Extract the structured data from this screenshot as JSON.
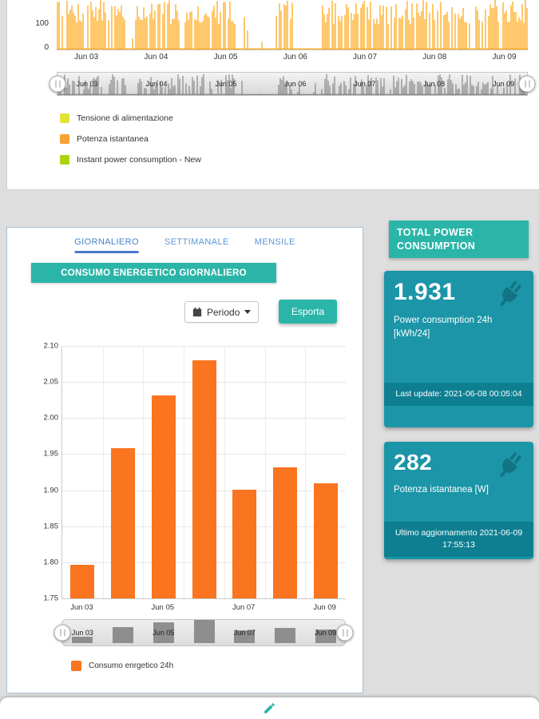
{
  "colors": {
    "accent_teal": "#2bb5a9",
    "card_teal": "#1b95a7",
    "strip_teal": "#0d7f91",
    "bar_orange": "#fb7420",
    "spike_orange": "#ffab1e",
    "navigator_series_gray": "#6f6f6f"
  },
  "top_chart": {
    "y_axis_ticks": [
      "100",
      "0"
    ],
    "x_axis_ticks": [
      "Jun 03",
      "Jun 04",
      "Jun 05",
      "Jun 06",
      "Jun 07",
      "Jun 08",
      "Jun 09"
    ],
    "navigator_labels": [
      "Jun 03",
      "Jun 04",
      "Jun 05",
      "Jun 06",
      "Jun 07",
      "Jun 08",
      "Jun 09"
    ],
    "legend": [
      {
        "label": "Tensione di alimentazione",
        "color": "#e3e337"
      },
      {
        "label": "Potenza istantanea",
        "color": "#f7a232"
      },
      {
        "label": "Instant power consumption - New",
        "color": "#abd40e"
      }
    ]
  },
  "daily_panel": {
    "tabs": [
      {
        "label": "GIORNALIERO"
      },
      {
        "label": "SETTIMANALE"
      },
      {
        "label": "MENSILE"
      }
    ],
    "title": "CONSUMO ENERGETICO GIORNALIERO",
    "periodo_label": "Periodo",
    "export_label": "Esporta",
    "legend_label": "Consumo enrgetico 24h",
    "navigator_labels": [
      "Jun 03",
      "Jun 05",
      "Jun 07",
      "Jun 09"
    ],
    "chart": {
      "type": "bar",
      "categories": [
        "Jun 03",
        "Jun 04",
        "Jun 05",
        "Jun 06",
        "Jun 07",
        "Jun 08",
        "Jun 09"
      ],
      "values": [
        1.797,
        1.958,
        2.031,
        2.08,
        1.901,
        1.932,
        1.91
      ],
      "y_min": 1.75,
      "y_max": 2.1,
      "y_ticks": [
        "2.10",
        "2.05",
        "2.00",
        "1.95",
        "1.90",
        "1.85",
        "1.80",
        "1.75"
      ],
      "x_ticks": [
        "Jun 03",
        "Jun 05",
        "Jun 07",
        "Jun 09"
      ],
      "bar_color": "#fb7420"
    }
  },
  "right_panel": {
    "header": "TOTAL POWER CONSUMPTION",
    "cards": [
      {
        "value": "1.931",
        "label": "Power consumption 24h [kWh/24]",
        "footer": "Last update: 2021-06-08 00:05:04"
      },
      {
        "value": "282",
        "label": "Potenza istantanea [W]",
        "footer": "Ultimo aggiornamento 2021-06-09 17:55:13"
      }
    ]
  }
}
